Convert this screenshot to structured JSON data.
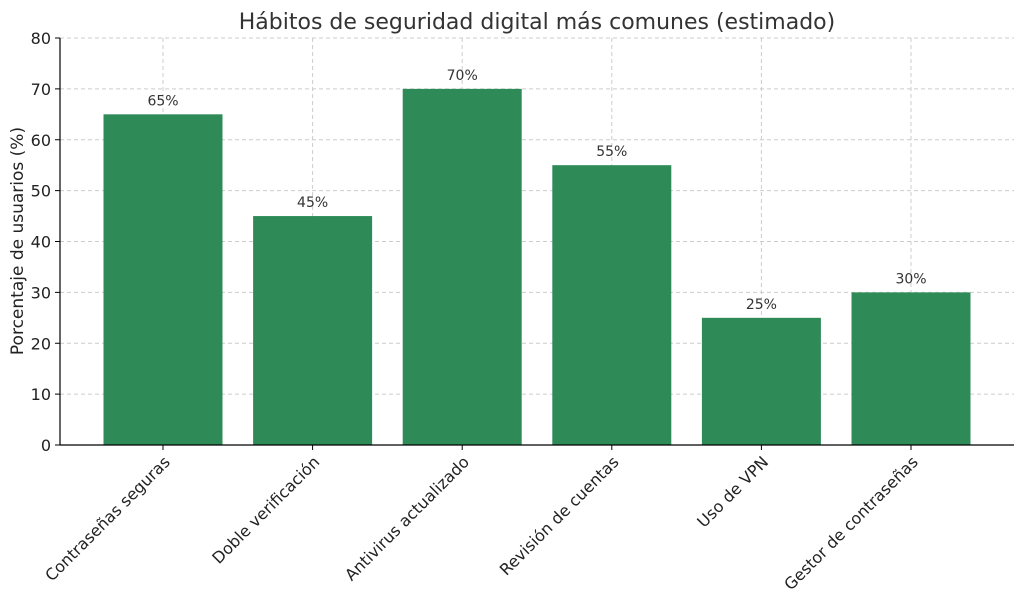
{
  "chart_data": {
    "type": "bar",
    "title": "Hábitos de seguridad digital más comunes (estimado)",
    "xlabel": "",
    "ylabel": "Porcentaje de usuarios (%)",
    "categories": [
      "Contraseñas seguras",
      "Doble verificación",
      "Antivirus actualizado",
      "Revisión de cuentas",
      "Uso de VPN",
      "Gestor de contraseñas"
    ],
    "values": [
      65,
      45,
      70,
      55,
      25,
      30
    ],
    "data_labels": [
      "65%",
      "45%",
      "70%",
      "55%",
      "25%",
      "30%"
    ],
    "ylim": [
      0,
      80
    ],
    "yticks": [
      0,
      10,
      20,
      30,
      40,
      50,
      60,
      70,
      80
    ],
    "grid": true,
    "bar_color": "#2e8b57"
  }
}
